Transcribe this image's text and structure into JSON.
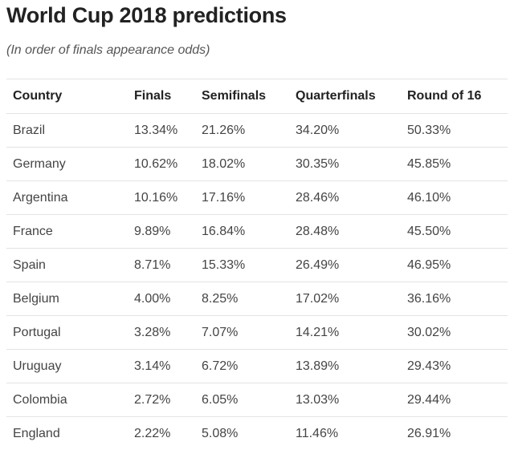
{
  "title": "World Cup 2018 predictions",
  "subtitle": "(In order of finals appearance odds)",
  "chart_data": {
    "type": "table",
    "title": "World Cup 2018 predictions",
    "subtitle": "(In order of finals appearance odds)",
    "columns": [
      "Country",
      "Finals",
      "Semifinals",
      "Quarterfinals",
      "Round of 16"
    ],
    "rows": [
      [
        "Brazil",
        "13.34%",
        "21.26%",
        "34.20%",
        "50.33%"
      ],
      [
        "Germany",
        "10.62%",
        "18.02%",
        "30.35%",
        "45.85%"
      ],
      [
        "Argentina",
        "10.16%",
        "17.16%",
        "28.46%",
        "46.10%"
      ],
      [
        "France",
        "9.89%",
        "16.84%",
        "28.48%",
        "45.50%"
      ],
      [
        "Spain",
        "8.71%",
        "15.33%",
        "26.49%",
        "46.95%"
      ],
      [
        "Belgium",
        "4.00%",
        "8.25%",
        "17.02%",
        "36.16%"
      ],
      [
        "Portugal",
        "3.28%",
        "7.07%",
        "14.21%",
        "30.02%"
      ],
      [
        "Uruguay",
        "3.14%",
        "6.72%",
        "13.89%",
        "29.43%"
      ],
      [
        "Colombia",
        "2.72%",
        "6.05%",
        "13.03%",
        "29.44%"
      ],
      [
        "England",
        "2.22%",
        "5.08%",
        "11.46%",
        "26.91%"
      ]
    ]
  }
}
